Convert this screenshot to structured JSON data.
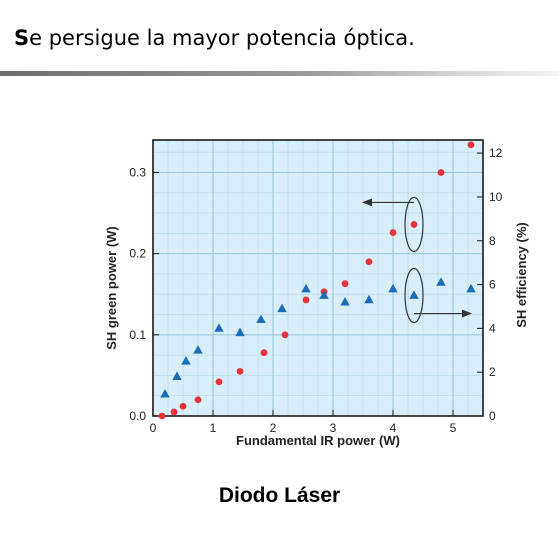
{
  "slide": {
    "title_initial": "S",
    "title_rest": "e persigue la mayor potencia óptica.",
    "caption": "Diodo Láser"
  },
  "colors": {
    "plot_background": "#d8eef8",
    "grid": "#9cc8de",
    "frame": "#1a1a1a",
    "green_power_marker": "#e8323c",
    "efficiency_marker": "#1b6eb4",
    "annotation": "#333333",
    "title_rule": "#8a8a8a"
  },
  "chart_data": {
    "type": "scatter",
    "xlabel": "Fundamental IR power (W)",
    "ylabel": "SH green power (W)",
    "y2label": "SH efficiency (%)",
    "xlim": [
      0,
      5.5
    ],
    "ylim": [
      0,
      0.34
    ],
    "y2lim": [
      0,
      12.6
    ],
    "xticks": [
      0,
      1,
      2,
      3,
      4,
      5
    ],
    "yticks": [
      0.0,
      0.1,
      0.2,
      0.3
    ],
    "ytick_labels": [
      "0.0",
      "0.1",
      "0.2",
      "0.3"
    ],
    "y2ticks": [
      0,
      2,
      4,
      6,
      8,
      10,
      12
    ],
    "grid": true,
    "series": [
      {
        "axis": "left",
        "marker": "circle",
        "x": [
          0.15,
          0.35,
          0.5,
          0.75,
          1.1,
          1.45,
          1.85,
          2.2,
          2.55,
          2.85,
          3.2,
          3.6,
          4.0,
          4.35,
          4.8,
          5.3
        ],
        "y": [
          0.0,
          0.005,
          0.012,
          0.02,
          0.042,
          0.055,
          0.078,
          0.1,
          0.143,
          0.153,
          0.163,
          0.19,
          0.226,
          0.236,
          0.3,
          0.334
        ]
      },
      {
        "axis": "right",
        "marker": "triangle",
        "x": [
          0.2,
          0.4,
          0.55,
          0.75,
          1.1,
          1.45,
          1.8,
          2.15,
          2.55,
          2.85,
          3.2,
          3.6,
          4.0,
          4.35,
          4.8,
          5.3
        ],
        "y": [
          1.0,
          1.8,
          2.5,
          3.0,
          4.0,
          3.8,
          4.4,
          4.9,
          5.8,
          5.5,
          5.2,
          5.3,
          5.8,
          5.5,
          6.1,
          5.8
        ]
      }
    ],
    "annotations": [
      {
        "target": "left",
        "arrow": "left",
        "ellipse_center": [
          4.35,
          0.236
        ],
        "arrow_to_x": 3.5
      },
      {
        "target": "right",
        "arrow": "right",
        "ellipse_center": [
          4.35,
          5.5
        ],
        "arrow_to_x": 5.3
      }
    ]
  }
}
